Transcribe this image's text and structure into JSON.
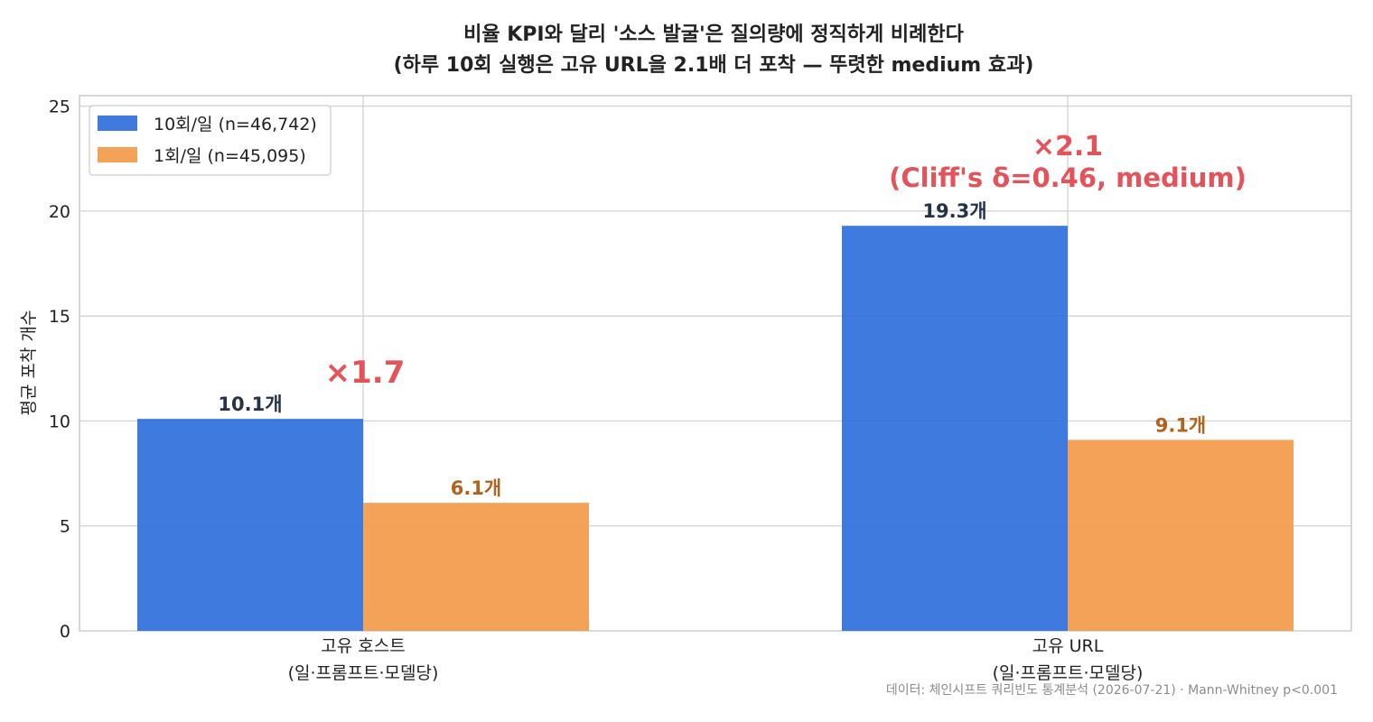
{
  "chart_data": {
    "type": "bar",
    "title_lines": [
      "비율 KPI와 달리 '소스 발굴'은 질의량에 정직하게 비례한다",
      "(하루 10회 실행은 고유 URL을 2.1배 더 포착 — 뚜렷한 medium 효과)"
    ],
    "categories": [
      [
        "고유 호스트",
        "(일·프롬프트·모델당)"
      ],
      [
        "고유 URL",
        "(일·프롬프트·모델당)"
      ]
    ],
    "series": [
      {
        "name": "10회/일 (n=46,742)",
        "color": "#2f6fdc",
        "values": [
          10.1,
          19.3
        ],
        "labels": [
          "10.1개",
          "19.3개"
        ]
      },
      {
        "name": "1회/일 (n=45,095)",
        "color": "#f29a4a",
        "values": [
          6.1,
          9.1
        ],
        "labels": [
          "6.1개",
          "9.1개"
        ]
      }
    ],
    "ratio_annotations": [
      {
        "category_index": 0,
        "lines": [
          "×1.7"
        ]
      },
      {
        "category_index": 1,
        "lines": [
          "×2.1",
          "(Cliff's δ=0.46, medium)"
        ]
      }
    ],
    "ylabel": "평균 포착 개수",
    "xlabel": "",
    "ylim": [
      0,
      25.5
    ],
    "yticks": [
      0,
      5,
      10,
      15,
      20,
      25
    ],
    "grid": true,
    "legend_position": "top-left",
    "source_note": "데이터: 체인시프트 쿼리빈도 통계분석 (2026-07-21) · Mann-Whitney p<0.001"
  }
}
